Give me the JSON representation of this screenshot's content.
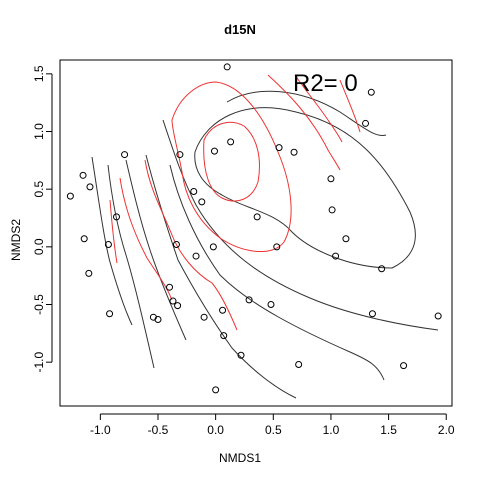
{
  "chart_data": {
    "type": "scatter",
    "title": "d15N",
    "xlabel": "NMDS1",
    "ylabel": "NMDS2",
    "annotation": "R2= 0",
    "xlim": [
      -1.35,
      2.05
    ],
    "ylim": [
      -1.38,
      1.62
    ],
    "xticks": [
      -1.0,
      -0.5,
      0.0,
      0.5,
      1.0,
      1.5,
      2.0
    ],
    "xtick_labels": [
      "-1.0",
      "-0.5",
      "0.0",
      "0.5",
      "1.0",
      "1.5",
      "2.0"
    ],
    "yticks": [
      -1.0,
      -0.5,
      0.0,
      0.5,
      1.0,
      1.5
    ],
    "ytick_labels": [
      "-1.0",
      "-0.5",
      "0.0",
      "0.5",
      "1.0",
      "1.5"
    ],
    "grid": false,
    "points": [
      [
        -1.26,
        0.44
      ],
      [
        -1.15,
        0.62
      ],
      [
        -1.14,
        0.07
      ],
      [
        -1.09,
        0.52
      ],
      [
        -1.1,
        -0.23
      ],
      [
        -0.93,
        0.02
      ],
      [
        -0.92,
        -0.58
      ],
      [
        -0.86,
        0.26
      ],
      [
        -0.79,
        0.8
      ],
      [
        -0.54,
        -0.61
      ],
      [
        -0.5,
        -0.63
      ],
      [
        -0.4,
        -0.35
      ],
      [
        -0.37,
        -0.47
      ],
      [
        -0.34,
        0.02
      ],
      [
        -0.33,
        -0.51
      ],
      [
        -0.31,
        0.8
      ],
      [
        -0.19,
        0.48
      ],
      [
        -0.17,
        -0.08
      ],
      [
        -0.12,
        0.39
      ],
      [
        -0.1,
        -0.61
      ],
      [
        -0.02,
        0.0
      ],
      [
        -0.01,
        0.83
      ],
      [
        0.0,
        -1.24
      ],
      [
        0.06,
        -0.55
      ],
      [
        0.07,
        -0.77
      ],
      [
        0.1,
        1.56
      ],
      [
        0.13,
        0.91
      ],
      [
        0.22,
        -0.94
      ],
      [
        0.29,
        -0.46
      ],
      [
        0.36,
        0.26
      ],
      [
        0.48,
        -0.5
      ],
      [
        0.53,
        0.0
      ],
      [
        0.55,
        0.86
      ],
      [
        0.68,
        0.82
      ],
      [
        0.72,
        -1.02
      ],
      [
        1.0,
        0.59
      ],
      [
        1.01,
        0.32
      ],
      [
        1.04,
        -0.08
      ],
      [
        1.13,
        0.07
      ],
      [
        1.3,
        1.07
      ],
      [
        1.35,
        1.34
      ],
      [
        1.36,
        -0.58
      ],
      [
        1.44,
        -0.19
      ],
      [
        1.63,
        -1.03
      ],
      [
        1.93,
        -0.6
      ]
    ],
    "contour_colors": {
      "black": "#333333",
      "red": "#ee3333"
    }
  }
}
